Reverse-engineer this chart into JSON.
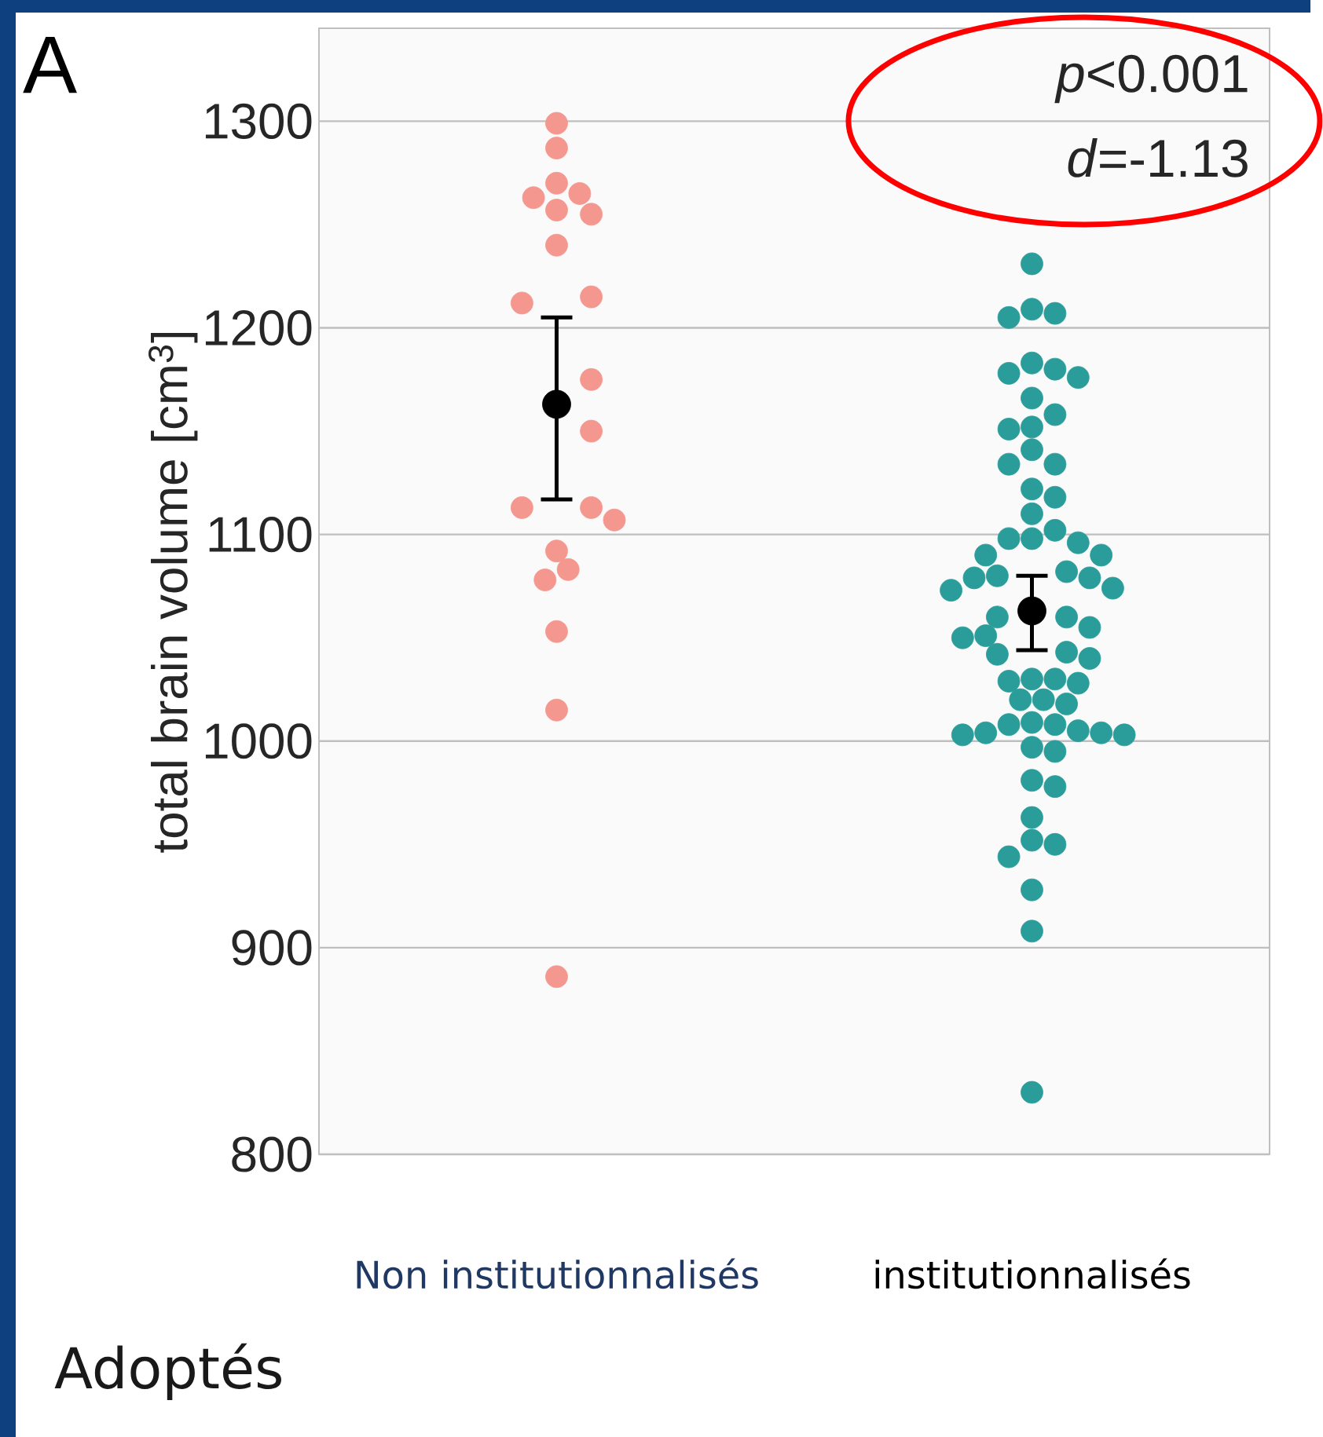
{
  "chart_data": {
    "type": "scatter",
    "ylabel": "total brain volume [cm$^{3}$]",
    "categories": [
      "Non institutionnalisés",
      "institutionnalisés"
    ],
    "ylim": [
      800,
      1345
    ],
    "yticks": [
      800,
      900,
      1000,
      1100,
      1200,
      1300
    ],
    "grid": "y",
    "series": [
      {
        "color": "#f4978e",
        "x": [
          "Non institutionnalisés",
          "Non institutionnalisés",
          "Non institutionnalisés",
          "Non institutionnalisés",
          "Non institutionnalisés",
          "Non institutionnalisés",
          "Non institutionnalisés",
          "Non institutionnalisés",
          "Non institutionnalisés",
          "Non institutionnalisés",
          "Non institutionnalisés",
          "Non institutionnalisés",
          "Non institutionnalisés",
          "Non institutionnalisés",
          "Non institutionnalisés",
          "Non institutionnalisés",
          "Non institutionnalisés",
          "Non institutionnalisés",
          "Non institutionnalisés",
          "Non institutionnalisés",
          "Non institutionnalisés"
        ],
        "values": [
          1299,
          1287,
          1270,
          1265,
          1263,
          1257,
          1255,
          1240,
          1215,
          1212,
          1175,
          1150,
          1113,
          1113,
          1107,
          1092,
          1083,
          1078,
          1053,
          1015,
          886
        ]
      },
      {
        "color": "#2a9d9b",
        "x": [
          "institutionnalisés",
          "institutionnalisés",
          "institutionnalisés",
          "institutionnalisés",
          "institutionnalisés",
          "institutionnalisés",
          "institutionnalisés",
          "institutionnalisés",
          "institutionnalisés",
          "institutionnalisés",
          "institutionnalisés",
          "institutionnalisés",
          "institutionnalisés",
          "institutionnalisés",
          "institutionnalisés",
          "institutionnalisés",
          "institutionnalisés",
          "institutionnalisés",
          "institutionnalisés",
          "institutionnalisés",
          "institutionnalisés",
          "institutionnalisés",
          "institutionnalisés",
          "institutionnalisés",
          "institutionnalisés",
          "institutionnalisés",
          "institutionnalisés",
          "institutionnalisés",
          "institutionnalisés",
          "institutionnalisés",
          "institutionnalisés",
          "institutionnalisés",
          "institutionnalisés",
          "institutionnalisés",
          "institutionnalisés",
          "institutionnalisés",
          "institutionnalisés",
          "institutionnalisés",
          "institutionnalisés",
          "institutionnalisés",
          "institutionnalisés",
          "institutionnalisés",
          "institutionnalisés",
          "institutionnalisés",
          "institutionnalisés",
          "institutionnalisés",
          "institutionnalisés",
          "institutionnalisés",
          "institutionnalisés",
          "institutionnalisés",
          "institutionnalisés",
          "institutionnalisés",
          "institutionnalisés",
          "institutionnalisés",
          "institutionnalisés",
          "institutionnalisés",
          "institutionnalisés",
          "institutionnalisés",
          "institutionnalisés",
          "institutionnalisés",
          "institutionnalisés",
          "institutionnalisés",
          "institutionnalisés",
          "institutionnalisés"
        ],
        "values": [
          1231,
          1207,
          1205,
          1209,
          1180,
          1178,
          1176,
          1183,
          1166,
          1158,
          1151,
          1152,
          1141,
          1134,
          1134,
          1122,
          1118,
          1110,
          1102,
          1098,
          1096,
          1098,
          1090,
          1090,
          1082,
          1079,
          1080,
          1079,
          1073,
          1074,
          1060,
          1060,
          1055,
          1051,
          1050,
          1043,
          1042,
          1040,
          1030,
          1029,
          1028,
          1030,
          1020,
          1020,
          1018,
          1009,
          1008,
          1008,
          1005,
          1004,
          1003,
          1003,
          1004,
          997,
          995,
          981,
          978,
          963,
          950,
          952,
          944,
          928,
          908,
          830
        ]
      },
      {
        "color": "#000000",
        "x": [
          "Non institutionnalisés",
          "institutionnalisés"
        ],
        "values": [
          1163,
          1063
        ],
        "errors": [
          [
            1117,
            1205
          ],
          [
            1044,
            1080
          ]
        ]
      }
    ],
    "annotations": [
      "*p*<0.001",
      "*d*=-1.13",
      "A",
      "Adoptés"
    ]
  }
}
